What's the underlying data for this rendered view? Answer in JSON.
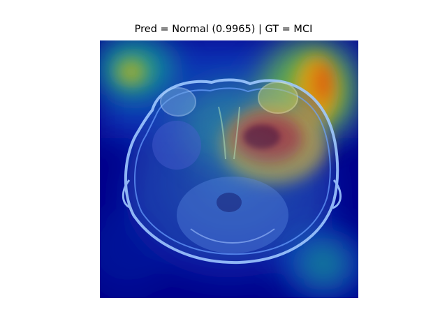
{
  "figure": {
    "title": "Pred = Normal (0.9965) | GT = MCI"
  },
  "image": {
    "description_icon": "brain-mri-gradcam-heatmap",
    "colormap": "jet",
    "background_color": "#00008b",
    "hotspot_color": "#8b0000"
  }
}
